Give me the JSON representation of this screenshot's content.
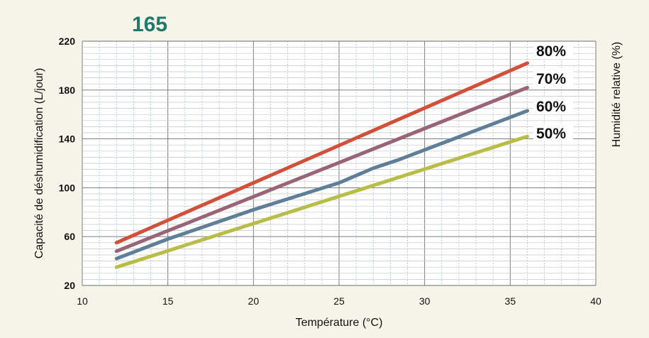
{
  "chart_data": {
    "type": "line",
    "title": "165",
    "xlabel": "Température (°C)",
    "ylabel": "Capacité de déshumidification (L/jour)",
    "y2label": "Humidité relative (%)",
    "xlim": [
      10,
      40
    ],
    "ylim": [
      20,
      220
    ],
    "xticks": [
      10,
      15,
      20,
      25,
      30,
      35,
      40
    ],
    "yticks": [
      20,
      60,
      100,
      140,
      180,
      220
    ],
    "grid": true,
    "legend": "inline-right",
    "series": [
      {
        "name": "80%",
        "color": "#d2503a",
        "x": [
          12,
          36
        ],
        "y": [
          55,
          202
        ]
      },
      {
        "name": "70%",
        "color": "#9a6478",
        "x": [
          12,
          36
        ],
        "y": [
          48,
          182
        ]
      },
      {
        "name": "60%",
        "color": "#5e7f97",
        "x": [
          12,
          15,
          20,
          25,
          27,
          28.5,
          30,
          33,
          36
        ],
        "y": [
          42,
          58,
          82,
          104,
          116,
          123,
          131,
          147,
          163
        ]
      },
      {
        "name": "50%",
        "color": "#b8bd48",
        "x": [
          12,
          36
        ],
        "y": [
          35,
          142
        ]
      }
    ]
  },
  "colors": {
    "background": "#f6f3e8",
    "plot_background": "#ffffff",
    "title": "#1f7a6c",
    "major_grid": "#6e6e6e",
    "minor_grid_vertical": "#a8c6de",
    "minor_grid_horizontal": "#c4c4c4"
  }
}
